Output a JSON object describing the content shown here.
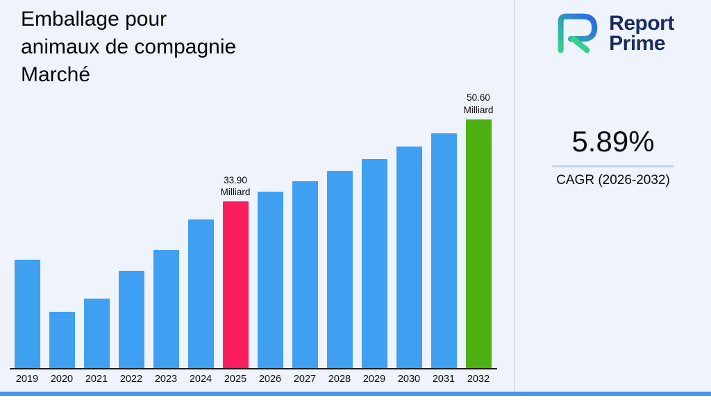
{
  "title_lines": [
    "Emballage pour",
    "animaux de compagnie",
    "Marché"
  ],
  "logo": {
    "line1": "Report",
    "line2": "Prime"
  },
  "stats": {
    "value": "5.89%",
    "label": "CAGR (2026-2032)"
  },
  "theme": {
    "background": "#eef3fc",
    "bottom_strip": "#4b93e6",
    "logo_text_color": "#1c2b5e",
    "logo_gradient_start": "#35d28f",
    "logo_gradient_end": "#2b63ea"
  },
  "chart_data": {
    "type": "bar",
    "title": "Emballage pour animaux de compagnie Marché",
    "xlabel": "",
    "ylabel": "",
    "unit": "Milliard",
    "ylim": [
      0,
      52
    ],
    "grid": false,
    "legend": "none",
    "categories": [
      "2019",
      "2020",
      "2021",
      "2022",
      "2023",
      "2024",
      "2025",
      "2026",
      "2027",
      "2028",
      "2029",
      "2030",
      "2031",
      "2032"
    ],
    "values": [
      22.0,
      11.5,
      14.2,
      19.8,
      24.1,
      30.2,
      33.9,
      35.9,
      38.0,
      40.2,
      42.6,
      45.1,
      47.8,
      50.6
    ],
    "value_labels": {
      "2025": "33.90",
      "2032": "50.60"
    },
    "colors": {
      "default": "#3f9ff0",
      "2025": "#fb1e5e",
      "2032": "#4db011"
    }
  }
}
